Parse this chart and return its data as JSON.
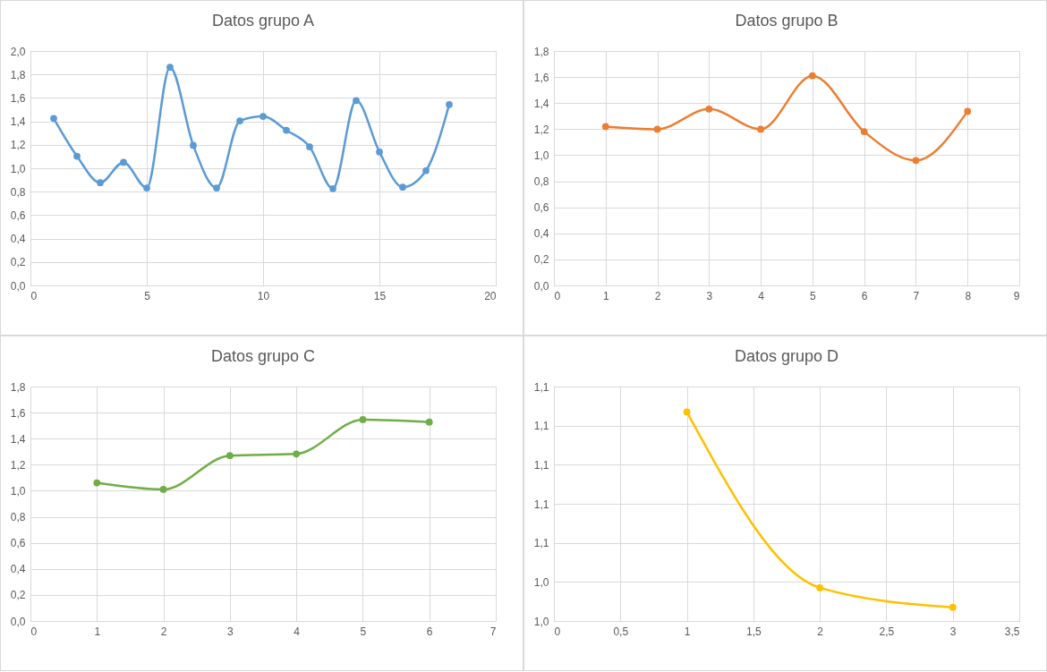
{
  "chart_data": [
    {
      "type": "line",
      "title": "Datos grupo A",
      "x": [
        1,
        2,
        3,
        4,
        5,
        6,
        7,
        8,
        9,
        10,
        11,
        12,
        13,
        14,
        15,
        16,
        17,
        18
      ],
      "values": [
        1.425,
        1.103,
        0.876,
        1.05,
        0.832,
        1.861,
        1.195,
        0.832,
        1.404,
        1.442,
        1.324,
        1.183,
        0.826,
        1.578,
        1.139,
        0.838,
        0.979,
        1.543
      ],
      "color": "#5b9bd5",
      "xlim": [
        0,
        20
      ],
      "xticks": [
        0,
        5,
        10,
        15,
        20
      ],
      "ylim": [
        0,
        2
      ],
      "yticks": [
        {
          "value": 0,
          "label": "0,0"
        },
        {
          "value": 0.2,
          "label": "0,2"
        },
        {
          "value": 0.4,
          "label": "0,4"
        },
        {
          "value": 0.6,
          "label": "0,6"
        },
        {
          "value": 0.8,
          "label": "0,8"
        },
        {
          "value": 1,
          "label": "1,0"
        },
        {
          "value": 1.2,
          "label": "1,2"
        },
        {
          "value": 1.4,
          "label": "1,4"
        },
        {
          "value": 1.6,
          "label": "1,6"
        },
        {
          "value": 1.8,
          "label": "1,8"
        },
        {
          "value": 2,
          "label": "2,0"
        }
      ],
      "grid": true,
      "marker": "circle"
    },
    {
      "type": "line",
      "title": "Datos grupo B",
      "x": [
        1,
        2,
        3,
        4,
        5,
        6,
        7,
        8
      ],
      "values": [
        1.22,
        1.199,
        1.355,
        1.199,
        1.61,
        1.181,
        0.96,
        1.337
      ],
      "color": "#ed7d31",
      "xlim": [
        0,
        9
      ],
      "xticks": [
        0,
        1,
        2,
        3,
        4,
        5,
        6,
        7,
        8,
        9
      ],
      "ylim": [
        0,
        1.8
      ],
      "yticks": [
        {
          "value": 0,
          "label": "0,0"
        },
        {
          "value": 0.2,
          "label": "0,2"
        },
        {
          "value": 0.4,
          "label": "0,4"
        },
        {
          "value": 0.6,
          "label": "0,6"
        },
        {
          "value": 0.8,
          "label": "0,8"
        },
        {
          "value": 1,
          "label": "1,0"
        },
        {
          "value": 1.2,
          "label": "1,2"
        },
        {
          "value": 1.4,
          "label": "1,4"
        },
        {
          "value": 1.6,
          "label": "1,6"
        },
        {
          "value": 1.8,
          "label": "1,8"
        }
      ],
      "grid": true,
      "marker": "circle"
    },
    {
      "type": "line",
      "title": "Datos grupo C",
      "x": [
        1,
        2,
        3,
        4,
        5,
        6
      ],
      "values": [
        1.061,
        1.01,
        1.27,
        1.283,
        1.546,
        1.527
      ],
      "color": "#70ad47",
      "xlim": [
        0,
        7
      ],
      "xticks": [
        0,
        1,
        2,
        3,
        4,
        5,
        6,
        7
      ],
      "ylim": [
        0,
        1.8
      ],
      "yticks": [
        {
          "value": 0,
          "label": "0,0"
        },
        {
          "value": 0.2,
          "label": "0,2"
        },
        {
          "value": 0.4,
          "label": "0,4"
        },
        {
          "value": 0.6,
          "label": "0,6"
        },
        {
          "value": 0.8,
          "label": "0,8"
        },
        {
          "value": 1,
          "label": "1,0"
        },
        {
          "value": 1.2,
          "label": "1,2"
        },
        {
          "value": 1.4,
          "label": "1,4"
        },
        {
          "value": 1.6,
          "label": "1,6"
        },
        {
          "value": 1.8,
          "label": "1,8"
        }
      ],
      "grid": true,
      "marker": "circle"
    },
    {
      "type": "line",
      "title": "Datos grupo D",
      "x": [
        1,
        2,
        3
      ],
      "values": [
        1.127,
        1.037,
        1.027
      ],
      "color": "#ffc000",
      "xlim": [
        0,
        3.5
      ],
      "xticks": [
        0,
        {
          "value": 0.5,
          "label": "0,5"
        },
        1,
        {
          "value": 1.5,
          "label": "1,5"
        },
        2,
        {
          "value": 2.5,
          "label": "2,5"
        },
        3,
        {
          "value": 3.5,
          "label": "3,5"
        }
      ],
      "ylim": [
        1.02,
        1.14
      ],
      "yticks": [
        {
          "value": 1.02,
          "label": "1,0"
        },
        {
          "value": 1.04,
          "label": "1,0"
        },
        {
          "value": 1.06,
          "label": "1,1"
        },
        {
          "value": 1.08,
          "label": "1,1"
        },
        {
          "value": 1.1,
          "label": "1,1"
        },
        {
          "value": 1.12,
          "label": "1,1"
        },
        {
          "value": 1.14,
          "label": "1,1"
        }
      ],
      "grid": true,
      "marker": "circle"
    }
  ]
}
